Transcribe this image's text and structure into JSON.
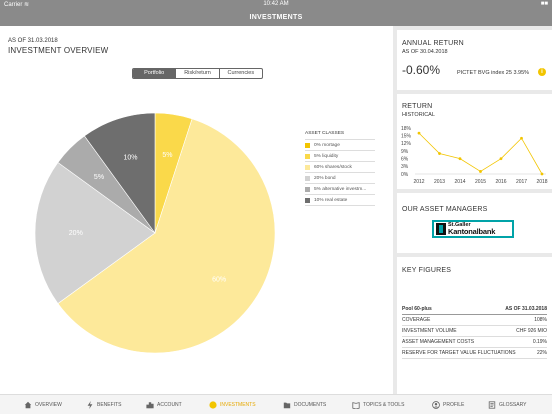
{
  "status": {
    "carrier": "Carrier ≋",
    "time": "10:42 AM",
    "battery": "■■"
  },
  "nav": {
    "title": "INVESTMENTS"
  },
  "overview": {
    "asof": "AS OF 31.03.2018",
    "title": "INVESTMENT OVERVIEW",
    "segments": [
      "Portfolio",
      "Risk/return",
      "Currencies"
    ],
    "selected_segment": "Portfolio"
  },
  "chart_data": [
    {
      "type": "pie",
      "categories": [
        "mortage",
        "liquidity",
        "shares/stock",
        "bond",
        "alternative investments",
        "real estate"
      ],
      "values": [
        0,
        5,
        60,
        20,
        5,
        10
      ],
      "labels": [
        "0%",
        "5%",
        "60%",
        "20%",
        "5%",
        "10%"
      ],
      "colors": [
        "#f2c500",
        "#fad94a",
        "#fde99a",
        "#d2d2d2",
        "#ababab",
        "#6e6e6e"
      ],
      "legend_title": "ASSET CLASSES",
      "legend_placement": "right",
      "legend": [
        "0% mortage",
        "5% liquidity",
        "60% shares/stock",
        "20% bond",
        "5% alternative investm...",
        "10% real estate"
      ]
    },
    {
      "type": "line",
      "x": [
        "2012",
        "2013",
        "2014",
        "2015",
        "2016",
        "2017",
        "2018"
      ],
      "values": [
        16,
        8,
        6,
        1,
        6,
        14,
        -0.6
      ],
      "yticks": [
        "18%",
        "15%",
        "12%",
        "9%",
        "6%",
        "3%",
        "0%"
      ],
      "ylim": [
        0,
        18
      ],
      "color": "#f2c500",
      "grid": false
    }
  ],
  "annual_return": {
    "title": "ANNUAL RETURN",
    "asof": "AS OF 30.04.2018",
    "value": "-0.60%",
    "benchmark": "PICTET BVG index 25 3.95%",
    "info_icon": "i"
  },
  "return_card": {
    "title": "RETURN",
    "subtitle": "HISTORICAL"
  },
  "managers": {
    "title": "OUR ASSET MANAGERS",
    "logo_line1": "St.Galler",
    "logo_line2": "Kantonalbank"
  },
  "key_figures": {
    "title": "KEY FIGURES",
    "header": {
      "label": "Pool 60-plus",
      "value": "AS OF 31.03.2018"
    },
    "rows": [
      {
        "label": "COVERAGE",
        "value": "108%"
      },
      {
        "label": "INVESTMENT VOLUME",
        "value": "CHF 926 MIO"
      },
      {
        "label": "ASSET MANAGEMENT COSTS",
        "value": "0.19%"
      },
      {
        "label": "RESERVE FOR TARGET VALUE FLUCTUATIONS",
        "value": "22%"
      }
    ]
  },
  "tabs": [
    {
      "label": "OVERVIEW",
      "icon": "home-icon"
    },
    {
      "label": "BENEFITS",
      "icon": "lightning-icon"
    },
    {
      "label": "ACCOUNT",
      "icon": "chart-icon"
    },
    {
      "label": "INVESTMENTS",
      "icon": "coin-icon",
      "active": true
    },
    {
      "label": "DOCUMENTS",
      "icon": "folder-icon"
    },
    {
      "label": "TOPICS & TOOLS",
      "icon": "book-icon"
    },
    {
      "label": "PROFILE",
      "icon": "person-icon"
    },
    {
      "label": "GLOSSARY",
      "icon": "glossary-icon"
    }
  ]
}
